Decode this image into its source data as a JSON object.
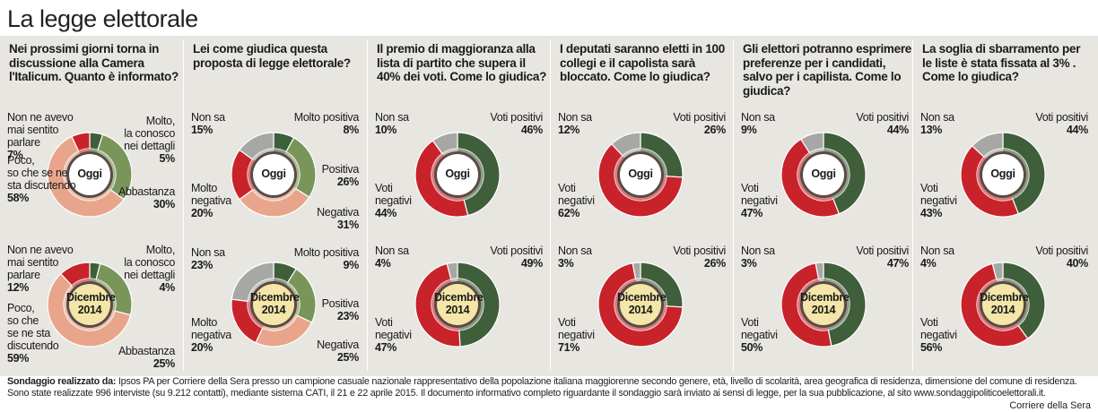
{
  "title": "La legge elettorale",
  "colors": {
    "dark_green": "#3f5e3a",
    "light_green": "#7a955a",
    "red": "#c8232b",
    "salmon": "#e8a58c",
    "grey": "#a7a7a5",
    "center_today": "#ffffff",
    "center_dec": "#f3e6a8"
  },
  "chart_data": [
    {
      "type": "pie",
      "question": "Nei prossimi giorni torna in discussione alla Camera l'Italicum. Quanto è informato?",
      "rows": [
        {
          "center": "Oggi",
          "slices": [
            {
              "name": "Molto, la conosco nei dettagli",
              "value": 5,
              "pct": "5%",
              "color": "dark_green"
            },
            {
              "name": "Abbastanza",
              "value": 30,
              "pct": "30%",
              "color": "light_green"
            },
            {
              "name": "Poco, so che se ne sta discutendo",
              "value": 58,
              "pct": "58%",
              "color": "salmon"
            },
            {
              "name": "Non ne avevo mai sentito parlare",
              "value": 7,
              "pct": "7%",
              "color": "red"
            }
          ]
        },
        {
          "center": "Dicembre 2014",
          "slices": [
            {
              "name": "Molto, la conosco nei dettagli",
              "value": 4,
              "pct": "4%",
              "color": "dark_green"
            },
            {
              "name": "Abbastanza",
              "value": 25,
              "pct": "25%",
              "color": "light_green"
            },
            {
              "name": "Poco, so che se ne sta discutendo",
              "value": 59,
              "pct": "59%",
              "color": "salmon"
            },
            {
              "name": "Non ne avevo mai sentito parlare",
              "value": 12,
              "pct": "12%",
              "color": "red"
            }
          ]
        }
      ]
    },
    {
      "type": "pie",
      "question": "Lei come giudica questa proposta di legge elettorale?",
      "rows": [
        {
          "center": "Oggi",
          "slices": [
            {
              "name": "Molto positiva",
              "value": 8,
              "pct": "8%",
              "color": "dark_green"
            },
            {
              "name": "Positiva",
              "value": 26,
              "pct": "26%",
              "color": "light_green"
            },
            {
              "name": "Negativa",
              "value": 31,
              "pct": "31%",
              "color": "salmon"
            },
            {
              "name": "Molto negativa",
              "value": 20,
              "pct": "20%",
              "color": "red"
            },
            {
              "name": "Non sa",
              "value": 15,
              "pct": "15%",
              "color": "grey"
            }
          ]
        },
        {
          "center": "Dicembre 2014",
          "slices": [
            {
              "name": "Molto positiva",
              "value": 9,
              "pct": "9%",
              "color": "dark_green"
            },
            {
              "name": "Positiva",
              "value": 23,
              "pct": "23%",
              "color": "light_green"
            },
            {
              "name": "Negativa",
              "value": 25,
              "pct": "25%",
              "color": "salmon"
            },
            {
              "name": "Molto negativa",
              "value": 20,
              "pct": "20%",
              "color": "red"
            },
            {
              "name": "Non sa",
              "value": 23,
              "pct": "23%",
              "color": "grey"
            }
          ]
        }
      ]
    },
    {
      "type": "pie",
      "question": "Il premio di maggioranza alla lista di partito che supera il 40% dei voti. Come lo giudica?",
      "rows": [
        {
          "center": "Oggi",
          "slices": [
            {
              "name": "Voti positivi",
              "value": 46,
              "pct": "46%",
              "color": "dark_green"
            },
            {
              "name": "Voti negativi",
              "value": 44,
              "pct": "44%",
              "color": "red"
            },
            {
              "name": "Non sa",
              "value": 10,
              "pct": "10%",
              "color": "grey"
            }
          ]
        },
        {
          "center": "Dicembre 2014",
          "slices": [
            {
              "name": "Voti positivi",
              "value": 49,
              "pct": "49%",
              "color": "dark_green"
            },
            {
              "name": "Voti negativi",
              "value": 47,
              "pct": "47%",
              "color": "red"
            },
            {
              "name": "Non sa",
              "value": 4,
              "pct": "4%",
              "color": "grey"
            }
          ]
        }
      ]
    },
    {
      "type": "pie",
      "question": "I deputati saranno eletti in 100 collegi e il capolista sarà bloccato. Come lo giudica?",
      "rows": [
        {
          "center": "Oggi",
          "slices": [
            {
              "name": "Voti positivi",
              "value": 26,
              "pct": "26%",
              "color": "dark_green"
            },
            {
              "name": "Voti negativi",
              "value": 62,
              "pct": "62%",
              "color": "red"
            },
            {
              "name": "Non sa",
              "value": 12,
              "pct": "12%",
              "color": "grey"
            }
          ]
        },
        {
          "center": "Dicembre 2014",
          "slices": [
            {
              "name": "Voti positivi",
              "value": 26,
              "pct": "26%",
              "color": "dark_green"
            },
            {
              "name": "Voti negativi",
              "value": 71,
              "pct": "71%",
              "color": "red"
            },
            {
              "name": "Non sa",
              "value": 3,
              "pct": "3%",
              "color": "grey"
            }
          ]
        }
      ]
    },
    {
      "type": "pie",
      "question": "Gli elettori potranno esprimere preferenze per i candidati, salvo per i capilista. Come lo giudica?",
      "rows": [
        {
          "center": "Oggi",
          "slices": [
            {
              "name": "Voti positivi",
              "value": 44,
              "pct": "44%",
              "color": "dark_green"
            },
            {
              "name": "Voti negativi",
              "value": 47,
              "pct": "47%",
              "color": "red"
            },
            {
              "name": "Non sa",
              "value": 9,
              "pct": "9%",
              "color": "grey"
            }
          ]
        },
        {
          "center": "Dicembre 2014",
          "slices": [
            {
              "name": "Voti positivi",
              "value": 47,
              "pct": "47%",
              "color": "dark_green"
            },
            {
              "name": "Voti negativi",
              "value": 50,
              "pct": "50%",
              "color": "red"
            },
            {
              "name": "Non sa",
              "value": 3,
              "pct": "3%",
              "color": "grey"
            }
          ]
        }
      ]
    },
    {
      "type": "pie",
      "question": "La soglia di sbarramento per le liste è stata fissata al 3% . Come lo giudica?",
      "rows": [
        {
          "center": "Oggi",
          "slices": [
            {
              "name": "Voti positivi",
              "value": 44,
              "pct": "44%",
              "color": "dark_green"
            },
            {
              "name": "Voti negativi",
              "value": 43,
              "pct": "43%",
              "color": "red"
            },
            {
              "name": "Non sa",
              "value": 13,
              "pct": "13%",
              "color": "grey"
            }
          ]
        },
        {
          "center": "Dicembre 2014",
          "slices": [
            {
              "name": "Voti positivi",
              "value": 40,
              "pct": "40%",
              "color": "dark_green"
            },
            {
              "name": "Voti negativi",
              "value": 56,
              "pct": "56%",
              "color": "red"
            },
            {
              "name": "Non sa",
              "value": 4,
              "pct": "4%",
              "color": "grey"
            }
          ]
        }
      ]
    }
  ],
  "footer": {
    "lead": "Sondaggio realizzato da:",
    "text": " Ipsos PA per Corriere della Sera presso un campione casuale nazionale rappresentativo della popolazione italiana maggiorenne secondo genere, età, livello di scolarità, area geografica di residenza, dimensione del comune di residenza. Sono state realizzate 996 interviste (su 9.212 contatti), mediante sistema CATI, il 21 e 22 aprile 2015. Il documento informativo completo riguardante il sondaggio sarà inviato ai sensi di legge, per la sua pubblicazione, al sito www.sondaggipoliticoelettorali.it."
  },
  "source": "Corriere della Sera"
}
